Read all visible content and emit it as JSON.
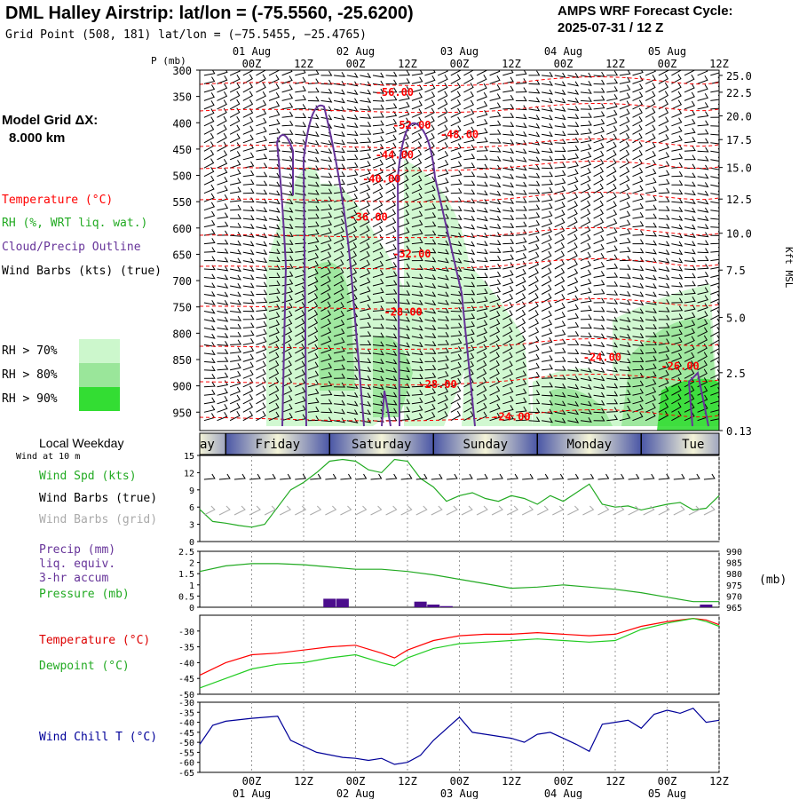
{
  "header": {
    "title": "DML Halley Airstrip:  lat/lon = (-75.5560, -25.6200)",
    "subtitle": "Grid Point (508, 181) lat/lon = (−75.5455, −25.4765)",
    "cycle_line1": "AMPS WRF Forecast Cycle:",
    "cycle_line2": "2025-07-31 / 12  Z"
  },
  "model_grid": {
    "label": "Model Grid ΔX:",
    "value": "8.000 km"
  },
  "legend": {
    "temperature": "Temperature (°C)",
    "rh": "RH (%, WRT liq. wat.)",
    "cloud": "Cloud/Precip Outline",
    "wind": "Wind Barbs (kts) (true)",
    "rh70": "RH > 70%",
    "rh80": "RH > 80%",
    "rh90": "RH > 90%"
  },
  "colors": {
    "temperature": "#ff0000",
    "rh": "#22aa22",
    "cloud": "#663399",
    "wind_grid": "#aaaaaa",
    "dewpoint": "#22cc22",
    "windchill": "#000099",
    "precip": "#4b0d8c",
    "rh70": "#ccf7cc",
    "rh80": "#9ae69a",
    "rh90": "#33dd33"
  },
  "time_axis": {
    "date_labels": [
      "01 Aug",
      "02 Aug",
      "03 Aug",
      "04 Aug",
      "05 Aug"
    ],
    "date_labels_bottom": [
      "01 Aug",
      "02 Aug",
      "03 Aug",
      "04 Aug",
      "05 Aug"
    ],
    "hour_labels": [
      "00Z",
      "12Z",
      "00Z",
      "12Z",
      "00Z",
      "12Z",
      "00Z",
      "12Z",
      "00Z",
      "12Z"
    ],
    "hour_values": [
      12,
      24,
      36,
      48,
      60,
      72,
      84,
      96,
      108,
      120
    ],
    "date_values": [
      12,
      36,
      60,
      84,
      108
    ]
  },
  "weekday_bar": {
    "heading": "Local Weekday",
    "sub": "Wind at 10 m",
    "days": [
      "sday",
      "Friday",
      "Saturday",
      "Sunday",
      "Monday",
      "Tue"
    ]
  },
  "chart_data": [
    {
      "type": "heatmap",
      "name_hint": "cross-section",
      "xlabel": "",
      "ylabel": "P (mb)",
      "y2label": "Kft MSL",
      "xlim": [
        0,
        120
      ],
      "ylim": [
        985,
        300
      ],
      "yticks": [
        300,
        350,
        400,
        450,
        500,
        550,
        600,
        650,
        700,
        750,
        800,
        850,
        900,
        950
      ],
      "y2ticks": [
        "25.0",
        "22.5",
        "20.0",
        "17.5",
        "15.0",
        "12.5",
        "10.0",
        "7.5",
        "5.0",
        "2.5",
        "0.13"
      ],
      "y2tick_p": [
        310,
        342,
        387,
        432,
        485,
        545,
        610,
        680,
        770,
        875,
        985
      ],
      "temperature_contour_labels": [
        {
          "text": "-56.00",
          "x": 45,
          "p": 342
        },
        {
          "text": "-52.00",
          "x": 49,
          "p": 405
        },
        {
          "text": "-48.00",
          "x": 60,
          "p": 422
        },
        {
          "text": "-44.00",
          "x": 45,
          "p": 461
        },
        {
          "text": "-40.00",
          "x": 42,
          "p": 507
        },
        {
          "text": "-36.00",
          "x": 39,
          "p": 579
        },
        {
          "text": "-32.00",
          "x": 49,
          "p": 649
        },
        {
          "text": "-28.00",
          "x": 47,
          "p": 760
        },
        {
          "text": "-24.00",
          "x": 93,
          "p": 846
        },
        {
          "text": "-28.00",
          "x": 55,
          "p": 897
        },
        {
          "text": "-26.00",
          "x": 111,
          "p": 863
        },
        {
          "text": "-24.00",
          "x": 72,
          "p": 959
        }
      ]
    },
    {
      "type": "line",
      "name_hint": "wind-speed",
      "ylabel": "Wind Spd (kts)",
      "ylim": [
        0,
        15
      ],
      "yticks": [
        0,
        3,
        6,
        9,
        12,
        15
      ],
      "series": [
        {
          "name": "Wind Spd (kts)",
          "x": [
            0,
            3,
            6,
            9,
            12,
            15,
            18,
            21,
            24,
            27,
            30,
            33,
            36,
            39,
            42,
            45,
            48,
            51,
            54,
            57,
            60,
            63,
            66,
            69,
            72,
            75,
            78,
            81,
            84,
            87,
            90,
            93,
            96,
            99,
            102,
            105,
            108,
            111,
            114,
            117,
            120
          ],
          "values": [
            5.6,
            3.5,
            3.2,
            2.8,
            2.5,
            3,
            6,
            9,
            10.3,
            12,
            14,
            14.3,
            14,
            12.5,
            12,
            14.3,
            14,
            11,
            9.5,
            7,
            8,
            8.5,
            7.5,
            7,
            8,
            7.5,
            6.5,
            8,
            7,
            8.5,
            10,
            6.5,
            6,
            6.2,
            5.5,
            6,
            6.5,
            6.8,
            5.5,
            5.8,
            8
          ]
        }
      ]
    },
    {
      "type": "line",
      "name_hint": "precip-pressure",
      "ylabel": "Precip (mm)",
      "y2label": "(mb)",
      "ylim": [
        0,
        2.5
      ],
      "yticks": [
        0,
        0.5,
        1.0,
        1.5,
        2.0,
        2.5
      ],
      "y2lim": [
        965,
        990
      ],
      "y2ticks": [
        965,
        970,
        975,
        980,
        985,
        990
      ],
      "series": [
        {
          "name": "Pressure (mb)",
          "x": [
            0,
            6,
            12,
            18,
            24,
            30,
            36,
            42,
            48,
            54,
            60,
            66,
            72,
            78,
            84,
            90,
            96,
            102,
            108,
            114,
            120
          ],
          "values": [
            981,
            983.5,
            984.5,
            984.5,
            984,
            983,
            982,
            982,
            981,
            979.5,
            977.5,
            975.5,
            973.5,
            974,
            975,
            974,
            973,
            971.5,
            969.5,
            967.5,
            967.5
          ]
        }
      ],
      "bars": {
        "x": [
          30,
          33,
          51,
          54,
          57,
          117
        ],
        "values": [
          0.38,
          0.38,
          0.25,
          0.12,
          0.05,
          0.12
        ]
      }
    },
    {
      "type": "line",
      "name_hint": "temperature-dewpoint",
      "ylim": [
        -50,
        -25
      ],
      "yticks": [
        -50,
        -45,
        -40,
        -35,
        -30
      ],
      "series": [
        {
          "name": "Temperature (°C)",
          "x": [
            0,
            6,
            12,
            18,
            24,
            30,
            36,
            42,
            45,
            48,
            54,
            60,
            66,
            72,
            78,
            84,
            90,
            96,
            102,
            108,
            114,
            117,
            120
          ],
          "values": [
            -44,
            -40,
            -37.5,
            -37,
            -36,
            -35,
            -34.5,
            -37,
            -38.5,
            -36,
            -33,
            -31.5,
            -31,
            -31,
            -30.5,
            -31,
            -31.5,
            -31,
            -28.5,
            -27,
            -26,
            -26.5,
            -28
          ]
        },
        {
          "name": "Dewpoint (°C)",
          "x": [
            0,
            6,
            12,
            18,
            24,
            30,
            36,
            42,
            45,
            48,
            54,
            60,
            66,
            72,
            78,
            84,
            90,
            96,
            102,
            108,
            114,
            117,
            120
          ],
          "values": [
            -48,
            -45,
            -42,
            -40.5,
            -40,
            -38.5,
            -37.5,
            -40,
            -41,
            -38.5,
            -35.5,
            -34,
            -33.5,
            -33,
            -32.5,
            -33,
            -33.5,
            -33,
            -29.5,
            -27.5,
            -26,
            -27,
            -28.5
          ]
        }
      ]
    },
    {
      "type": "line",
      "name_hint": "wind-chill",
      "ylim": [
        -65,
        -30
      ],
      "yticks": [
        -65,
        -60,
        -55,
        -50,
        -45,
        -40,
        -35,
        -30
      ],
      "series": [
        {
          "name": "Wind Chill T (°C)",
          "x": [
            0,
            3,
            6,
            12,
            18,
            21,
            27,
            33,
            36,
            39,
            42,
            45,
            48,
            51,
            54,
            60,
            63,
            66,
            72,
            75,
            78,
            81,
            84,
            87,
            90,
            93,
            96,
            99,
            102,
            105,
            108,
            111,
            114,
            117,
            120
          ],
          "values": [
            -51,
            -41.5,
            -39.5,
            -38,
            -37,
            -49,
            -55,
            -57.5,
            -58,
            -59,
            -58,
            -61,
            -60,
            -56.5,
            -49,
            -37.5,
            -45,
            -46,
            -48,
            -50,
            -46,
            -45,
            -48,
            -51,
            -54.5,
            -41,
            -40,
            -39,
            -43,
            -36,
            -34,
            -35.5,
            -33,
            -40,
            -39
          ]
        }
      ]
    }
  ],
  "panel_legends": {
    "wind_spd": "Wind Spd (kts)",
    "wind_barbs": "Wind Barbs (true)",
    "wind_barbs_grid": "Wind Barbs (grid)",
    "precip1": "Precip (mm)",
    "precip2": "liq. equiv.",
    "precip3": "3-hr accum",
    "pressure": "Pressure (mb)",
    "temperature": "Temperature (°C)",
    "dewpoint": "Dewpoint (°C)",
    "windchill": "Wind Chill T (°C)"
  }
}
